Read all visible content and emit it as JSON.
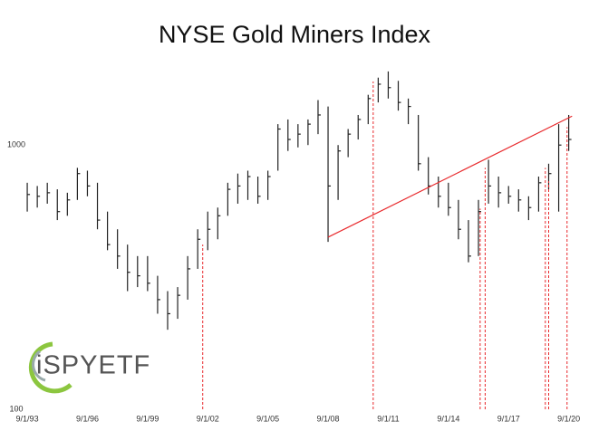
{
  "chart_data": {
    "type": "hlc",
    "title": "NYSE Gold Miners Index",
    "x": [
      "9/1/93",
      "3/1/94",
      "9/1/94",
      "3/1/95",
      "9/1/95",
      "3/1/96",
      "9/1/96",
      "3/1/97",
      "9/1/97",
      "3/1/98",
      "9/1/98",
      "3/1/99",
      "9/1/99",
      "3/1/00",
      "9/1/00",
      "3/1/01",
      "9/1/01",
      "3/1/02",
      "9/1/02",
      "3/1/03",
      "9/1/03",
      "3/1/04",
      "9/1/04",
      "3/1/05",
      "9/1/05",
      "3/1/06",
      "9/1/06",
      "3/1/07",
      "9/1/07",
      "3/1/08",
      "9/1/08",
      "3/1/09",
      "9/1/09",
      "3/1/10",
      "9/1/10",
      "3/1/11",
      "9/1/11",
      "3/1/12",
      "9/1/12",
      "3/1/13",
      "9/1/13",
      "3/1/14",
      "9/1/14",
      "3/1/15",
      "9/1/15",
      "3/1/16",
      "9/1/16",
      "3/1/17",
      "9/1/17",
      "3/1/18",
      "9/1/18",
      "3/1/19",
      "9/1/19",
      "3/1/20",
      "9/1/20"
    ],
    "high": [
      720,
      700,
      720,
      680,
      660,
      820,
      800,
      720,
      560,
      480,
      420,
      380,
      380,
      320,
      280,
      290,
      380,
      480,
      560,
      580,
      720,
      780,
      800,
      760,
      800,
      1200,
      1250,
      1200,
      1250,
      1480,
      1400,
      1000,
      1150,
      1300,
      1550,
      1800,
      1900,
      1750,
      1500,
      1300,
      900,
      760,
      720,
      620,
      520,
      620,
      880,
      760,
      700,
      680,
      640,
      760,
      850,
      1200,
      1300
    ],
    "low": [
      560,
      580,
      600,
      520,
      540,
      620,
      640,
      480,
      400,
      340,
      280,
      290,
      280,
      230,
      200,
      220,
      260,
      340,
      400,
      440,
      540,
      600,
      620,
      600,
      620,
      800,
      950,
      980,
      1000,
      1100,
      430,
      620,
      900,
      1050,
      1200,
      1450,
      1500,
      1350,
      1200,
      800,
      650,
      580,
      540,
      440,
      360,
      380,
      600,
      580,
      600,
      560,
      520,
      560,
      680,
      560,
      950
    ],
    "close": [
      650,
      640,
      660,
      560,
      620,
      780,
      700,
      520,
      420,
      380,
      330,
      320,
      300,
      260,
      230,
      270,
      340,
      440,
      480,
      540,
      680,
      700,
      760,
      640,
      760,
      1150,
      1050,
      1100,
      1200,
      1300,
      700,
      950,
      1100,
      1250,
      1500,
      1700,
      1650,
      1450,
      1400,
      850,
      700,
      640,
      580,
      480,
      380,
      560,
      700,
      660,
      640,
      620,
      580,
      720,
      780,
      1000,
      1050
    ],
    "color": "#222",
    "log_scale": true,
    "ylim": [
      100,
      3000
    ],
    "yticks": [
      100,
      1000
    ],
    "xlim": [
      "3/1/93",
      "1/1/21"
    ],
    "xticks": [
      "9/1/93",
      "9/1/96",
      "9/1/99",
      "9/1/02",
      "9/1/05",
      "9/1/08",
      "9/1/11",
      "9/1/14",
      "9/1/17",
      "9/1/20"
    ],
    "annotation_color": "#e8292c",
    "trendline": {
      "x": [
        "9/1/08",
        "11/1/20"
      ],
      "values": [
        448,
        1287
      ]
    },
    "markers": {
      "x": [
        "6/1/02",
        "12/1/10",
        "4/1/16",
        "7/1/16",
        "7/1/19",
        "9/1/19",
        "8/1/20"
      ],
      "values": [
        420,
        1740,
        575,
        820,
        820,
        730,
        1170
      ]
    },
    "logo": "iSPYETF"
  }
}
